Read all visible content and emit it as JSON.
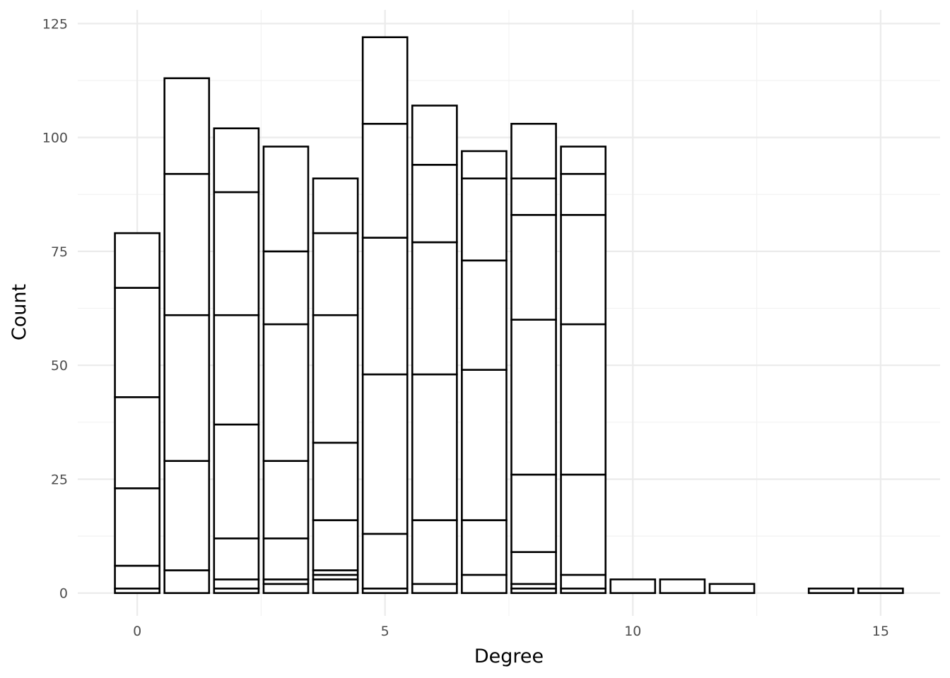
{
  "chart_data": {
    "type": "bar",
    "stacked": true,
    "title": "",
    "xlabel": "Degree",
    "ylabel": "Count",
    "xlim": [
      -1.2,
      16.2
    ],
    "ylim": [
      -5,
      128
    ],
    "x_ticks": [
      0,
      5,
      10,
      15
    ],
    "y_ticks": [
      0,
      25,
      50,
      75,
      100,
      125
    ],
    "grid": true,
    "legend": "none",
    "colors": {
      "bar_fill": "#ffffff",
      "bar_stroke": "#000000",
      "grid_major": "#ebebeb",
      "grid_minor": "#f2f2f2",
      "tick_text": "#4d4d4d"
    },
    "bars": [
      {
        "x": 0,
        "total": 79,
        "boundaries": [
          0,
          1,
          6,
          23,
          43,
          67,
          79
        ]
      },
      {
        "x": 1,
        "total": 113,
        "boundaries": [
          0,
          5,
          29,
          61,
          92,
          113
        ]
      },
      {
        "x": 2,
        "total": 102,
        "boundaries": [
          0,
          1,
          3,
          12,
          37,
          61,
          88,
          102
        ]
      },
      {
        "x": 3,
        "total": 98,
        "boundaries": [
          0,
          2,
          3,
          12,
          29,
          59,
          75,
          98
        ]
      },
      {
        "x": 4,
        "total": 91,
        "boundaries": [
          0,
          3,
          4,
          5,
          16,
          33,
          61,
          79,
          91
        ]
      },
      {
        "x": 5,
        "total": 122,
        "boundaries": [
          0,
          1,
          13,
          48,
          78,
          103,
          122
        ]
      },
      {
        "x": 6,
        "total": 107,
        "boundaries": [
          0,
          2,
          16,
          48,
          77,
          94,
          107
        ]
      },
      {
        "x": 7,
        "total": 97,
        "boundaries": [
          0,
          4,
          16,
          49,
          73,
          91,
          97
        ]
      },
      {
        "x": 8,
        "total": 103,
        "boundaries": [
          0,
          1,
          2,
          9,
          26,
          60,
          83,
          91,
          103
        ]
      },
      {
        "x": 9,
        "total": 98,
        "boundaries": [
          0,
          1,
          4,
          26,
          59,
          83,
          92,
          98
        ]
      },
      {
        "x": 10,
        "total": 3,
        "boundaries": [
          0,
          3
        ]
      },
      {
        "x": 11,
        "total": 3,
        "boundaries": [
          0,
          3
        ]
      },
      {
        "x": 12,
        "total": 2,
        "boundaries": [
          0,
          2
        ]
      },
      {
        "x": 14,
        "total": 1,
        "boundaries": [
          0,
          1
        ]
      },
      {
        "x": 15,
        "total": 1,
        "boundaries": [
          0,
          1
        ]
      }
    ]
  }
}
